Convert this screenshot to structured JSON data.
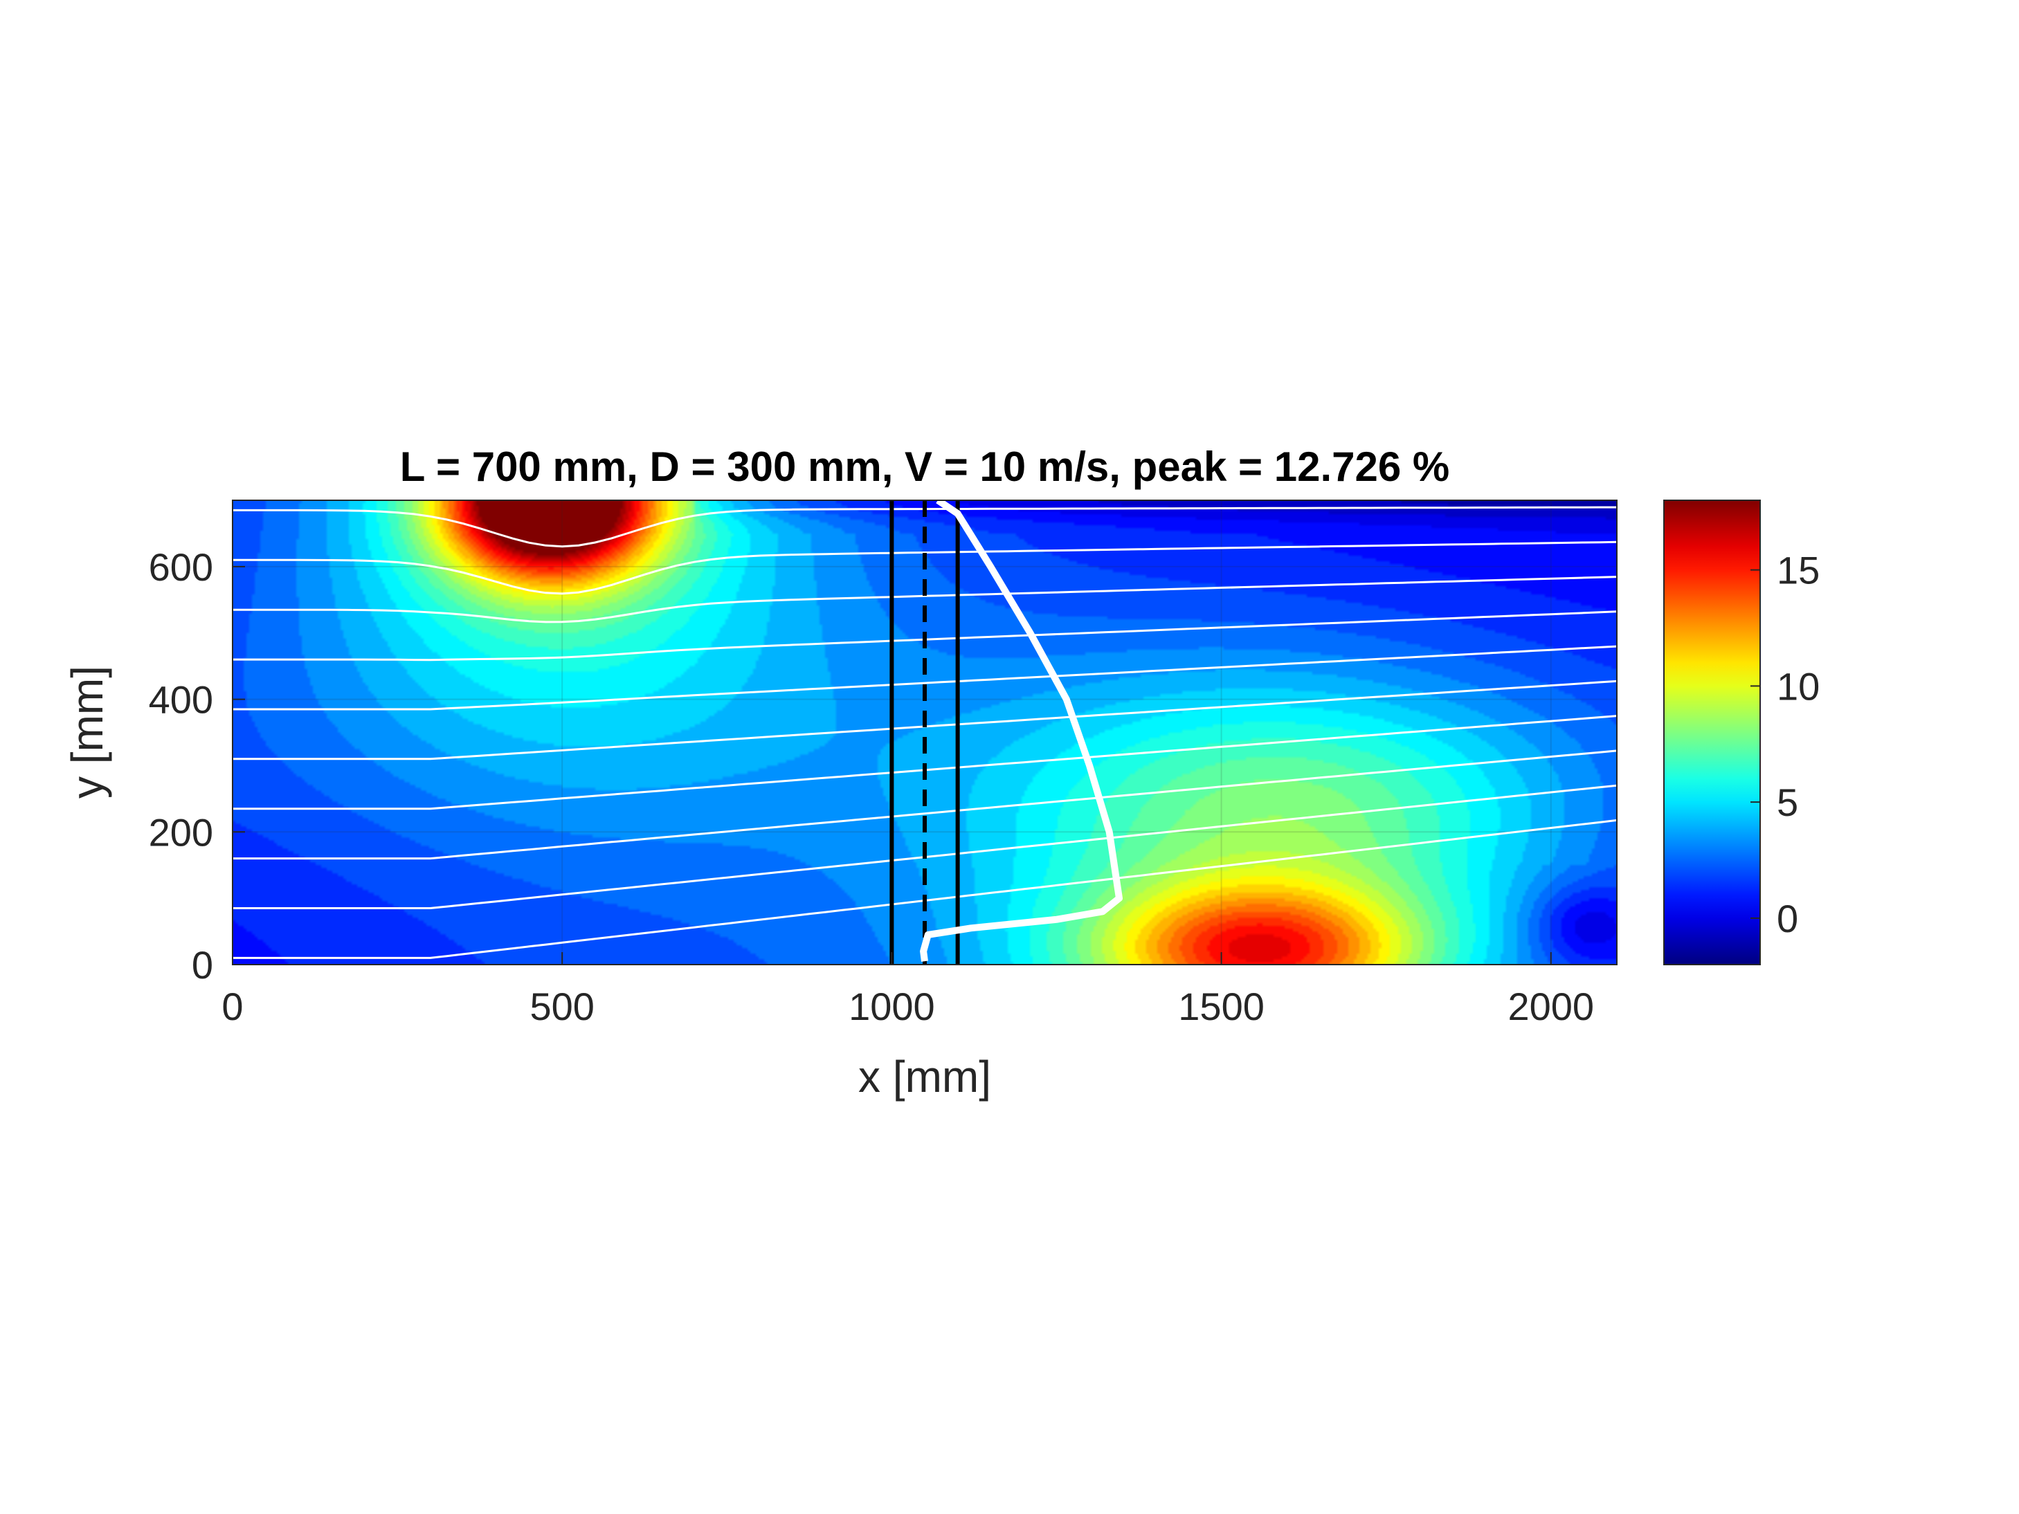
{
  "chart_data": {
    "type": "heatmap",
    "title": "L = 700 mm, D = 300 mm, V = 10 m/s, peak = 12.726 %",
    "xlabel": "x [mm]",
    "ylabel": "y [mm]",
    "xlim": [
      0,
      2100
    ],
    "ylim": [
      0,
      700
    ],
    "xticks": [
      0,
      500,
      1000,
      1500,
      2000
    ],
    "yticks": [
      0,
      200,
      400,
      600
    ],
    "xtick_labels": [
      "0",
      "500",
      "1000",
      "1500",
      "2000"
    ],
    "ytick_labels": [
      "0",
      "200",
      "400",
      "600"
    ],
    "grid": true,
    "colormap": "jet",
    "color_range": [
      -2,
      18
    ],
    "colorbar_ticks": [
      0,
      5,
      10,
      15
    ],
    "colorbar_tick_labels": [
      "0",
      "5",
      "10",
      "15"
    ],
    "field_sources": [
      {
        "x": 480,
        "y": 700,
        "peak": 18,
        "sx": 110,
        "sy": 80,
        "halo": 5.5,
        "hsx": 260,
        "hsy": 230
      },
      {
        "x": 1560,
        "y": 20,
        "peak": 9.5,
        "sx": 170,
        "sy": 70,
        "halo": 5.5,
        "hsx": 330,
        "hsy": 260
      },
      {
        "x": 1640,
        "y": 250,
        "peak": 3,
        "sx": 280,
        "sy": 120
      }
    ],
    "background_level": 2.2,
    "streamline_start_y": [
      10,
      85,
      160,
      235,
      310,
      385,
      460,
      535,
      610,
      685
    ],
    "vertical_lines": [
      {
        "x": 1000,
        "style": "solid",
        "color": "#000000"
      },
      {
        "x": 1050,
        "style": "dashed",
        "color": "#000000"
      },
      {
        "x": 1100,
        "style": "solid",
        "color": "#000000"
      }
    ],
    "profile_curve": [
      [
        1050,
        5
      ],
      [
        1048,
        20
      ],
      [
        1055,
        45
      ],
      [
        1120,
        55
      ],
      [
        1250,
        68
      ],
      [
        1320,
        80
      ],
      [
        1345,
        100
      ],
      [
        1330,
        200
      ],
      [
        1300,
        300
      ],
      [
        1265,
        400
      ],
      [
        1210,
        500
      ],
      [
        1150,
        600
      ],
      [
        1100,
        680
      ],
      [
        1070,
        700
      ]
    ]
  },
  "colors": {
    "streamline": "#ffffff",
    "profile": "#ffffff",
    "axis": "#262626",
    "title": "#000000"
  }
}
